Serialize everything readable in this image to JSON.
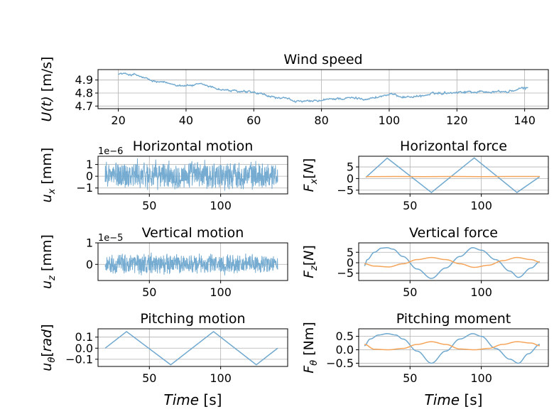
{
  "chart_data": [
    {
      "id": "wind",
      "type": "line",
      "title": "Wind speed",
      "ylabel": "U(t) [m/s]",
      "xlim": [
        14,
        147
      ],
      "ylim": [
        4.68,
        4.98
      ],
      "xticks": [
        20,
        40,
        60,
        80,
        100,
        120,
        140
      ],
      "yticks": [
        4.7,
        4.8,
        4.9
      ],
      "ytick_labels": [
        "4.7",
        "4.8",
        "4.9"
      ],
      "grid": true,
      "series": [
        {
          "color": "#6fa8cf",
          "kind": "noisy",
          "noise": 0.006,
          "x": [
            20,
            25,
            30,
            35,
            40,
            45,
            50,
            55,
            60,
            65,
            70,
            75,
            80,
            85,
            90,
            95,
            100,
            105,
            110,
            115,
            120,
            125,
            130,
            135,
            141
          ],
          "y": [
            4.95,
            4.94,
            4.89,
            4.87,
            4.86,
            4.86,
            4.83,
            4.81,
            4.8,
            4.77,
            4.75,
            4.73,
            4.74,
            4.76,
            4.76,
            4.76,
            4.79,
            4.77,
            4.78,
            4.8,
            4.81,
            4.81,
            4.81,
            4.81,
            4.84
          ]
        }
      ]
    },
    {
      "id": "umotion",
      "type": "line",
      "title": "Horizontal motion",
      "ylabel": "u_x [mm]",
      "offset_text": "1e−6",
      "xlim": [
        14,
        147
      ],
      "ylim": [
        -1.5,
        1.7
      ],
      "xticks": [
        50,
        100
      ],
      "yticks": [
        -1,
        0,
        1
      ],
      "ytick_labels": [
        "−1",
        "0",
        "1"
      ],
      "grid": true,
      "series": [
        {
          "color": "#6fa8cf",
          "kind": "band",
          "x": [
            19,
            40,
            60,
            80,
            100,
            120,
            140
          ],
          "y": [
            0.1,
            0.1,
            0.1,
            0.1,
            0.1,
            0.1,
            0.1
          ],
          "amplitude": [
            1.3,
            1.45,
            1.3,
            1.35,
            1.4,
            1.3,
            1.2
          ]
        }
      ]
    },
    {
      "id": "fx",
      "type": "line",
      "title": "Horizontal force",
      "ylabel": "F_x[N]",
      "xlim": [
        14,
        147
      ],
      "ylim": [
        -6.6,
        9.6
      ],
      "xticks": [
        50,
        100
      ],
      "yticks": [
        -5,
        0,
        5
      ],
      "ytick_labels": [
        "−5",
        "0",
        "5"
      ],
      "grid": true,
      "series": [
        {
          "color": "#6fa8cf",
          "kind": "line",
          "x": [
            19,
            34,
            65,
            95,
            125,
            141
          ],
          "y": [
            0.5,
            8.8,
            -6.0,
            8.9,
            -6.0,
            0.8
          ]
        },
        {
          "color": "#f5a55a",
          "kind": "line",
          "x": [
            19,
            40,
            60,
            80,
            100,
            120,
            141
          ],
          "y": [
            0.8,
            0.9,
            0.8,
            0.9,
            0.8,
            0.9,
            0.9
          ]
        }
      ]
    },
    {
      "id": "wmotion",
      "type": "line",
      "title": "Vertical motion",
      "ylabel": "u_z [mm]",
      "offset_text": "1e−5",
      "xlim": [
        14,
        147
      ],
      "ylim": [
        -0.75,
        1.0
      ],
      "xticks": [
        50,
        100
      ],
      "yticks": [
        0,
        1
      ],
      "ytick_labels": [
        "0",
        "1"
      ],
      "grid": true,
      "series": [
        {
          "color": "#6fa8cf",
          "kind": "band",
          "x": [
            19,
            40,
            60,
            80,
            100,
            120,
            140
          ],
          "y": [
            0.02,
            0.02,
            0.02,
            0.02,
            0.02,
            0.02,
            0.02
          ],
          "amplitude": [
            0.45,
            0.6,
            0.55,
            0.5,
            0.55,
            0.5,
            0.45
          ]
        }
      ]
    },
    {
      "id": "fz",
      "type": "line",
      "title": "Vertical force",
      "ylabel": "F_z[N]",
      "xlim": [
        14,
        147
      ],
      "ylim": [
        -8.5,
        9.5
      ],
      "xticks": [
        50,
        100
      ],
      "yticks": [
        -5,
        0,
        5
      ],
      "ytick_labels": [
        "−5",
        "0",
        "5"
      ],
      "grid": true,
      "series": [
        {
          "color": "#6fa8cf",
          "kind": "smooth",
          "x": [
            18,
            20,
            25,
            30,
            34,
            38,
            45,
            55,
            65,
            75,
            85,
            94,
            100,
            110,
            120,
            126,
            135,
            141
          ],
          "y": [
            -1.5,
            1.5,
            5.0,
            7.0,
            7.2,
            6.5,
            3.0,
            -3.0,
            -7.5,
            -2.5,
            3.0,
            7.2,
            6.0,
            1.5,
            -4.0,
            -7.0,
            -2.5,
            0.5
          ]
        },
        {
          "color": "#f5a55a",
          "kind": "smooth",
          "x": [
            18,
            25,
            35,
            45,
            55,
            65,
            75,
            85,
            95,
            105,
            115,
            125,
            135,
            141
          ],
          "y": [
            -0.5,
            -1.6,
            -2.0,
            -0.5,
            1.5,
            2.5,
            1.5,
            -0.5,
            -2.2,
            -1.2,
            1.0,
            2.5,
            1.5,
            0.3
          ]
        }
      ]
    },
    {
      "id": "theta",
      "type": "line",
      "title": "Pitching motion",
      "ylabel": "u_θ[rad]",
      "xlabel": "Time [s]",
      "xlim": [
        14,
        147
      ],
      "ylim": [
        -0.165,
        0.175
      ],
      "xticks": [
        50,
        100
      ],
      "yticks": [
        -0.1,
        0.0,
        0.1
      ],
      "ytick_labels": [
        "−0.1",
        "0.0",
        "0.1"
      ],
      "grid": true,
      "series": [
        {
          "color": "#6fa8cf",
          "kind": "line",
          "x": [
            19,
            34,
            65,
            95,
            125,
            140
          ],
          "y": [
            0.0,
            0.15,
            -0.15,
            0.15,
            -0.15,
            0.0
          ]
        }
      ]
    },
    {
      "id": "moment",
      "type": "line",
      "title": "Pitching moment",
      "ylabel": "F_θ [Nm]",
      "xlabel": "Time [s]",
      "xlim": [
        14,
        147
      ],
      "ylim": [
        -0.62,
        0.78
      ],
      "xticks": [
        50,
        100
      ],
      "yticks": [
        -0.5,
        0.0,
        0.5
      ],
      "ytick_labels": [
        "−0.5",
        "0.0",
        "0.5"
      ],
      "grid": true,
      "series": [
        {
          "color": "#6fa8cf",
          "kind": "smooth",
          "x": [
            18,
            22,
            28,
            34,
            40,
            45,
            55,
            65,
            75,
            85,
            94,
            100,
            110,
            120,
            126,
            133,
            141
          ],
          "y": [
            0.15,
            0.4,
            0.55,
            0.6,
            0.55,
            0.4,
            -0.05,
            -0.5,
            -0.05,
            0.4,
            0.6,
            0.5,
            0.05,
            -0.35,
            -0.5,
            -0.15,
            0.2
          ]
        },
        {
          "color": "#f5a55a",
          "kind": "smooth",
          "x": [
            18,
            25,
            35,
            45,
            55,
            65,
            75,
            85,
            95,
            105,
            115,
            125,
            135,
            141
          ],
          "y": [
            0.2,
            0.02,
            0.0,
            0.05,
            0.2,
            0.3,
            0.2,
            0.03,
            0.0,
            0.05,
            0.2,
            0.3,
            0.25,
            0.15
          ]
        }
      ]
    }
  ]
}
